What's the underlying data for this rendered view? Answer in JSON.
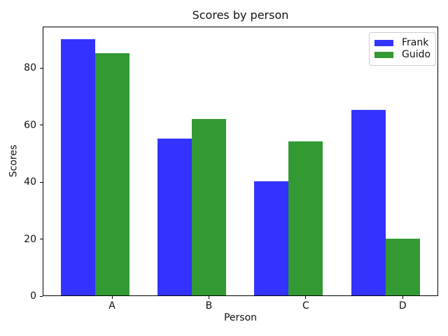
{
  "chart_data": {
    "type": "bar",
    "title": "Scores by person",
    "xlabel": "Person",
    "ylabel": "Scores",
    "categories": [
      "A",
      "B",
      "C",
      "D"
    ],
    "series": [
      {
        "name": "Frank",
        "color": "#3333ff",
        "values": [
          90,
          55,
          40,
          65
        ]
      },
      {
        "name": "Guido",
        "color": "#339933",
        "values": [
          85,
          62,
          54,
          20
        ]
      }
    ],
    "yticks": [
      0,
      20,
      40,
      60,
      80
    ],
    "ylim": [
      0,
      94.6
    ],
    "grid": false,
    "legend_position": "upper right",
    "background_color": "#ffffff",
    "spine_color": "#000000",
    "text_color": "#111111"
  }
}
